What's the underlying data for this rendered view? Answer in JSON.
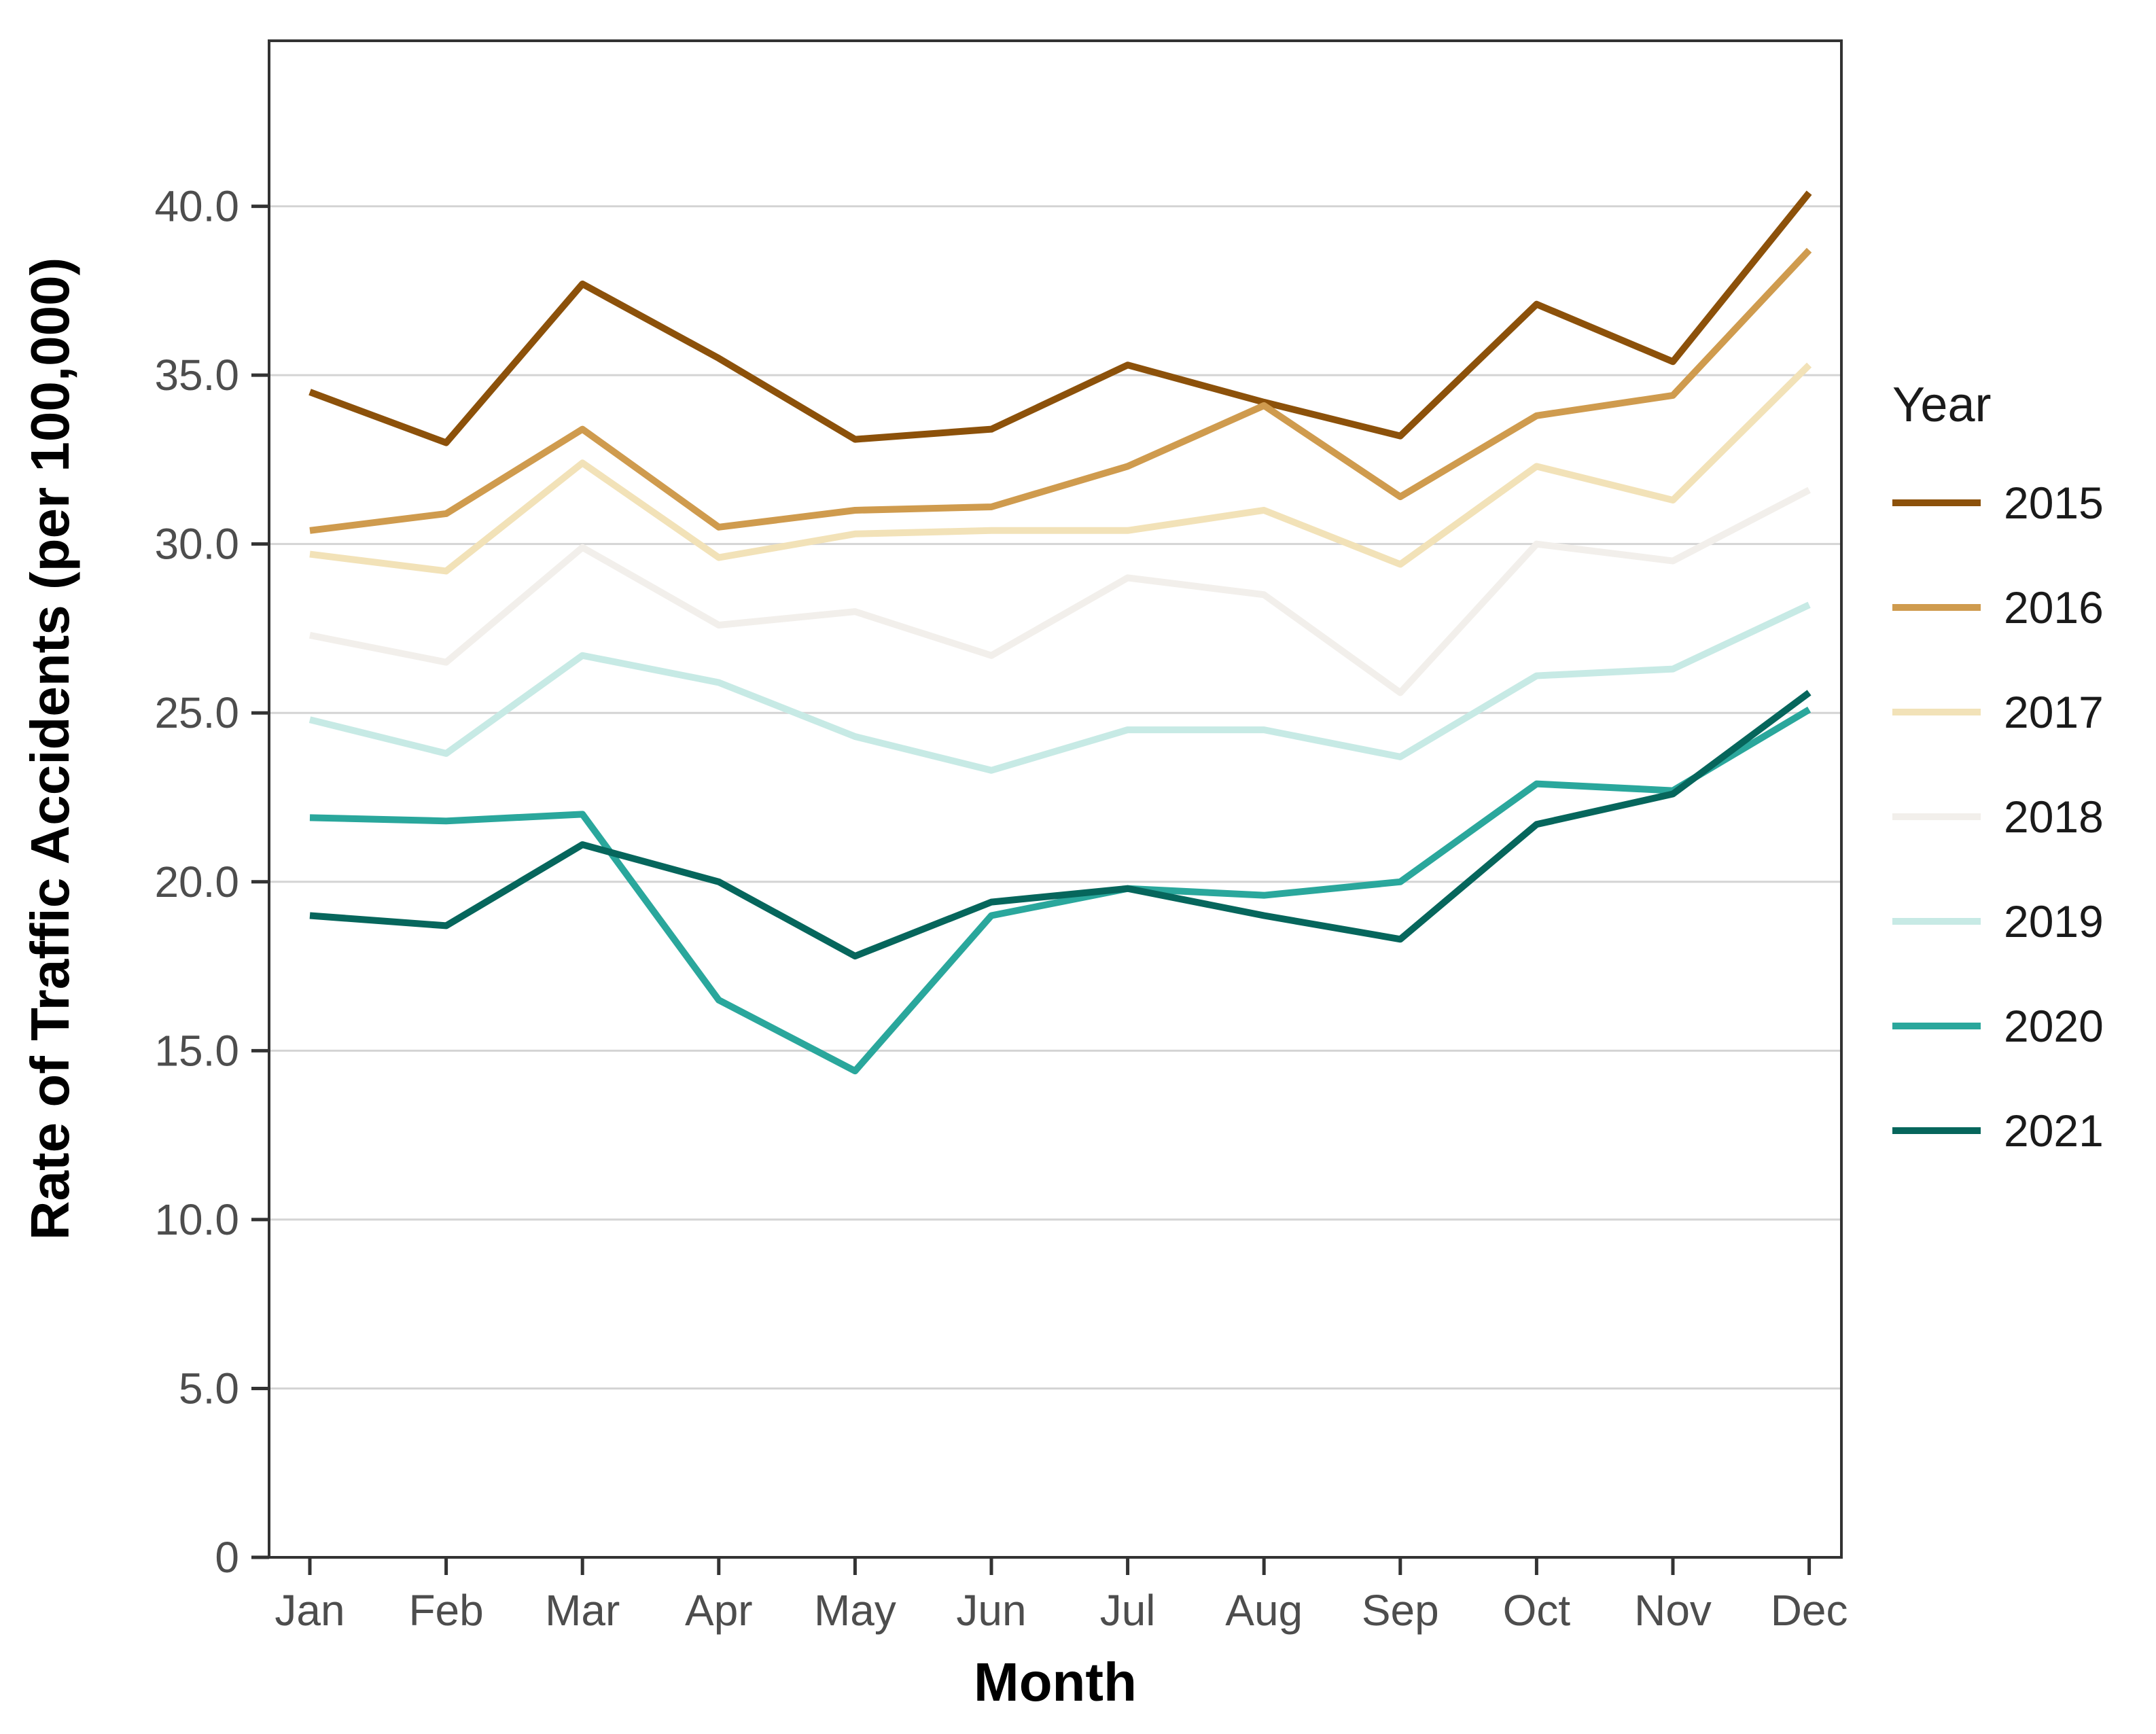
{
  "chart_data": {
    "type": "line",
    "title": "",
    "xlabel": "Month",
    "ylabel": "Rate of Traffic Accidents (per 100,000)",
    "legend_title": "Year",
    "legend_position": "right",
    "grid": "horizontal major gridlines at 5.0 intervals",
    "ylim": [
      0,
      44.9
    ],
    "x_categories": [
      "Jan",
      "Feb",
      "Mar",
      "Apr",
      "May",
      "Jun",
      "Jul",
      "Aug",
      "Sep",
      "Oct",
      "Nov",
      "Dec"
    ],
    "y_ticks": [
      {
        "value": 0,
        "label": "0"
      },
      {
        "value": 5,
        "label": "5.0"
      },
      {
        "value": 10,
        "label": "10.0"
      },
      {
        "value": 15,
        "label": "15.0"
      },
      {
        "value": 20,
        "label": "20.0"
      },
      {
        "value": 25,
        "label": "25.0"
      },
      {
        "value": 30,
        "label": "30.0"
      },
      {
        "value": 35,
        "label": "35.0"
      },
      {
        "value": 40,
        "label": "40.0"
      }
    ],
    "series": [
      {
        "name": "2015",
        "color": "#8c510a",
        "values": [
          34.5,
          33.0,
          37.7,
          35.5,
          33.1,
          33.4,
          35.3,
          34.2,
          33.2,
          37.1,
          35.4,
          40.4
        ]
      },
      {
        "name": "2016",
        "color": "#cf9b4e",
        "values": [
          30.4,
          30.9,
          33.4,
          30.5,
          31.0,
          31.1,
          32.3,
          34.1,
          31.4,
          33.8,
          34.4,
          38.7
        ]
      },
      {
        "name": "2017",
        "color": "#f2e2b8",
        "values": [
          29.7,
          29.2,
          32.4,
          29.6,
          30.3,
          30.4,
          30.4,
          31.0,
          29.4,
          32.3,
          31.3,
          35.3
        ]
      },
      {
        "name": "2018",
        "color": "#f2efeb",
        "values": [
          27.3,
          26.5,
          29.9,
          27.6,
          28.0,
          26.7,
          29.0,
          28.5,
          25.6,
          30.0,
          29.5,
          31.6
        ]
      },
      {
        "name": "2019",
        "color": "#c7eae5",
        "values": [
          24.8,
          23.8,
          26.7,
          25.9,
          24.3,
          23.3,
          24.5,
          24.5,
          23.7,
          26.1,
          26.3,
          28.2
        ]
      },
      {
        "name": "2020",
        "color": "#2aa79c",
        "values": [
          21.9,
          21.8,
          22.0,
          16.5,
          14.4,
          19.0,
          19.8,
          19.6,
          20.0,
          22.9,
          22.7,
          25.1
        ]
      },
      {
        "name": "2021",
        "color": "#06665c",
        "values": [
          19.0,
          18.7,
          21.1,
          20.0,
          17.8,
          19.4,
          19.8,
          19.0,
          18.3,
          21.7,
          22.6,
          25.6
        ]
      }
    ],
    "style": {
      "panel_border_color": "#333333",
      "gridline_color": "#d4d4d4",
      "tick_color": "#333333",
      "tick_label_color": "#4d4d4d",
      "line_width": 10
    }
  }
}
